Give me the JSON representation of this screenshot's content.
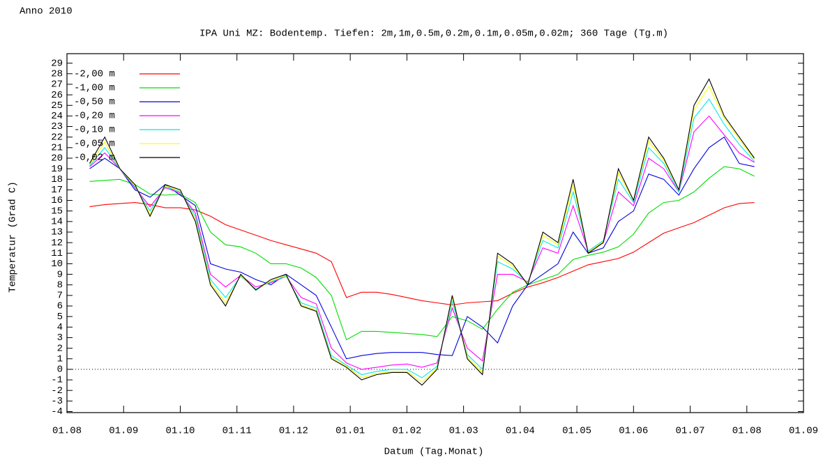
{
  "chart_data": {
    "type": "line",
    "annotation": "Anno 2010",
    "title": "IPA Uni MZ: Bodentemp. Tiefen: 2m,1m,0.5m,0.2m,0.1m,0.05m,0.02m; 360 Tage (Tg.m)",
    "x_label": "Datum (Tag.Monat)",
    "y_label": "Temperatur (Grad C)",
    "legend": "upper left",
    "zero_line": true,
    "xlim": [
      0,
      390
    ],
    "xticks": [
      {
        "value": 0,
        "label": "01.08"
      },
      {
        "value": 30,
        "label": "01.09"
      },
      {
        "value": 60,
        "label": "01.10"
      },
      {
        "value": 90,
        "label": "01.11"
      },
      {
        "value": 120,
        "label": "01.12"
      },
      {
        "value": 150,
        "label": "01.01"
      },
      {
        "value": 180,
        "label": "01.02"
      },
      {
        "value": 210,
        "label": "01.03"
      },
      {
        "value": 240,
        "label": "01.04"
      },
      {
        "value": 270,
        "label": "01.05"
      },
      {
        "value": 300,
        "label": "01.06"
      },
      {
        "value": 330,
        "label": "01.07"
      },
      {
        "value": 360,
        "label": "01.08"
      },
      {
        "value": 390,
        "label": "01.09"
      }
    ],
    "ylim": [
      -4.1,
      29.9
    ],
    "yticks": [
      -4,
      -3,
      -2,
      -1,
      0,
      1,
      2,
      3,
      4,
      5,
      6,
      7,
      8,
      9,
      10,
      11,
      12,
      13,
      14,
      15,
      16,
      17,
      18,
      19,
      20,
      21,
      22,
      23,
      24,
      25,
      26,
      27,
      28,
      29
    ],
    "x": [
      12,
      20,
      28,
      36,
      44,
      52,
      60,
      68,
      76,
      84,
      92,
      100,
      108,
      116,
      124,
      132,
      140,
      148,
      156,
      164,
      172,
      180,
      188,
      196,
      204,
      212,
      220,
      228,
      236,
      244,
      252,
      260,
      268,
      276,
      284,
      292,
      300,
      308,
      316,
      324,
      332,
      340,
      348,
      356,
      364
    ],
    "series": [
      {
        "name": "-2,00 m",
        "color": "#ff0000",
        "values": [
          15.4,
          15.6,
          15.7,
          15.8,
          15.6,
          15.3,
          15.3,
          15.1,
          14.5,
          13.7,
          13.2,
          12.7,
          12.2,
          11.8,
          11.4,
          11.0,
          10.2,
          6.8,
          7.3,
          7.3,
          7.1,
          6.8,
          6.5,
          6.3,
          6.1,
          6.3,
          6.4,
          6.5,
          7.2,
          7.8,
          8.2,
          8.7,
          9.3,
          9.9,
          10.2,
          10.5,
          11.1,
          12,
          12.9,
          13.4,
          13.9,
          14.6,
          15.3,
          15.7,
          15.8
        ]
      },
      {
        "name": "-1,00 m",
        "color": "#00dd00",
        "values": [
          17.8,
          17.9,
          18,
          17.5,
          16.6,
          16.5,
          16.6,
          15.8,
          13,
          11.8,
          11.6,
          11,
          10,
          10,
          9.6,
          8.7,
          7,
          2.8,
          3.6,
          3.6,
          3.5,
          3.4,
          3.3,
          3.1,
          5,
          4.6,
          3.8,
          5.7,
          7.3,
          8,
          8.5,
          9,
          10.4,
          10.8,
          11.1,
          11.6,
          12.8,
          14.8,
          15.8,
          16,
          16.8,
          18.1,
          19.2,
          19,
          18.3
        ]
      },
      {
        "name": "-0,50 m",
        "color": "#0000dd",
        "values": [
          19,
          20,
          19,
          17,
          16.3,
          17.5,
          16.5,
          15.5,
          10,
          9.5,
          9.2,
          8.5,
          8,
          9,
          8,
          7,
          4,
          1,
          1.3,
          1.5,
          1.6,
          1.6,
          1.6,
          1.4,
          1.3,
          5,
          4,
          2.5,
          6,
          8,
          9,
          10,
          13,
          11,
          11.5,
          14,
          15,
          18.5,
          18,
          16.5,
          19,
          21,
          22,
          19.5,
          19.2
        ]
      },
      {
        "name": "-0,20 m",
        "color": "#ff00ff",
        "values": [
          19.2,
          20.5,
          19,
          17.2,
          15.4,
          17.2,
          16.7,
          14.8,
          9,
          7.8,
          8.9,
          7.8,
          8.2,
          8.8,
          6.8,
          6.2,
          2,
          0.6,
          0,
          0.2,
          0.4,
          0.5,
          0.2,
          0.6,
          5.8,
          2,
          0.8,
          9,
          9,
          8.3,
          11.5,
          11,
          15.5,
          11.2,
          12,
          16.8,
          15.5,
          20,
          19,
          16.8,
          22.5,
          24,
          22.2,
          20.5,
          19.6
        ]
      },
      {
        "name": "-0,10 m",
        "color": "#00e8e8",
        "values": [
          19.3,
          21,
          19,
          17.3,
          15,
          17.3,
          16.8,
          14.5,
          8.5,
          6.8,
          8.8,
          7.6,
          8.3,
          8.8,
          6.3,
          5.8,
          1.3,
          0.4,
          -0.5,
          -0.2,
          0,
          0,
          -0.8,
          0.3,
          6.4,
          1.4,
          0,
          10.2,
          9.5,
          8.2,
          12.2,
          11.5,
          16.8,
          11.2,
          12.2,
          18,
          15.8,
          21,
          19.5,
          16.8,
          23.8,
          25.6,
          23.2,
          21.3,
          19.7
        ]
      },
      {
        "name": "-0,05 m",
        "color": "#ffff00",
        "values": [
          19.4,
          21.5,
          19,
          17.4,
          14.7,
          17.4,
          16.9,
          14.2,
          8.2,
          6.3,
          8.9,
          7.5,
          8.4,
          8.9,
          6.1,
          5.6,
          1.1,
          0.3,
          -0.8,
          -0.4,
          -0.2,
          -0.2,
          -1.2,
          0.1,
          6.8,
          1.2,
          -0.3,
          10.7,
          9.8,
          8.1,
          12.7,
          11.8,
          17.5,
          11.1,
          12.1,
          18.6,
          16,
          21.6,
          19.8,
          17,
          24.6,
          26.8,
          23.8,
          21.8,
          19.9
        ]
      },
      {
        "name": "-0,02 m",
        "color": "#000000",
        "values": [
          19.5,
          22,
          19,
          17.5,
          14.5,
          17.5,
          17,
          14,
          8,
          6,
          9,
          7.5,
          8.5,
          9,
          6,
          5.5,
          1,
          0.2,
          -1,
          -0.5,
          -0.3,
          -0.3,
          -1.5,
          0,
          7,
          1,
          -0.5,
          11,
          10,
          8,
          13,
          12,
          18,
          11,
          12,
          19,
          16,
          22,
          20,
          17,
          25,
          27.5,
          24,
          22,
          20
        ]
      }
    ]
  }
}
